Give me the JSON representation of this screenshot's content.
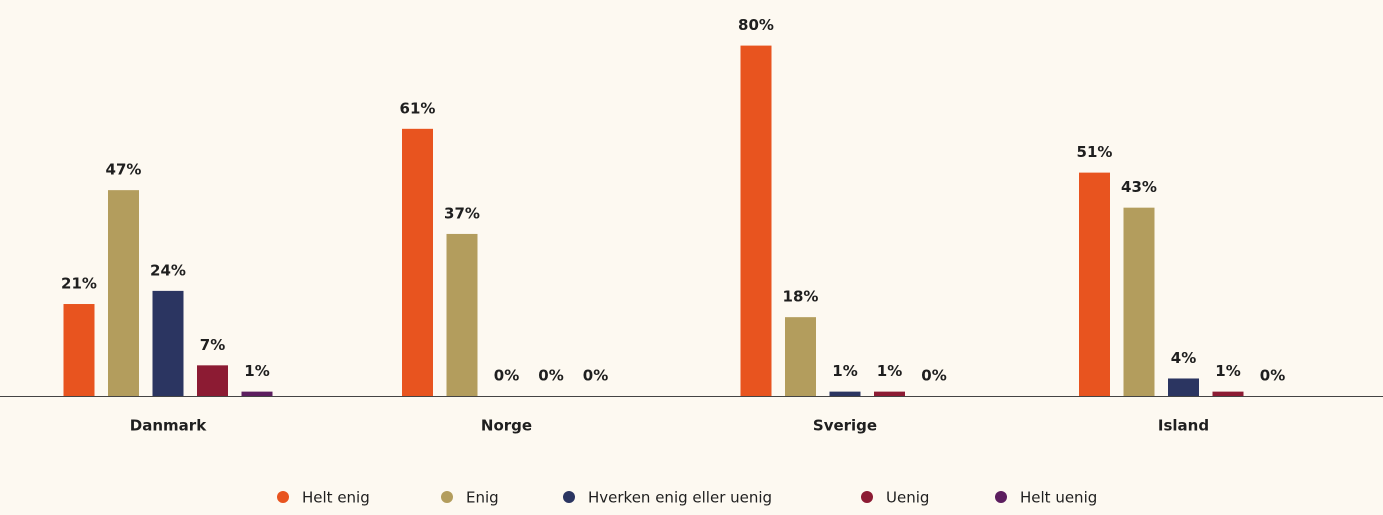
{
  "chart_data": {
    "type": "bar",
    "categories": [
      "Danmark",
      "Norge",
      "Sverige",
      "Island"
    ],
    "series": [
      {
        "name": "Helt enig",
        "color": "#e8541f",
        "values": [
          21,
          61,
          80,
          51
        ],
        "value_labels": [
          "21%",
          "61%",
          "80%",
          "51%"
        ]
      },
      {
        "name": "Enig",
        "color": "#b39d5d",
        "values": [
          47,
          37,
          18,
          43
        ],
        "value_labels": [
          "47%",
          "37%",
          "18%",
          "43%"
        ]
      },
      {
        "name": "Hverken enig eller uenig",
        "color": "#2b3561",
        "values": [
          24,
          0,
          1,
          4
        ],
        "value_labels": [
          "24%",
          "0%",
          "1%",
          "4%"
        ]
      },
      {
        "name": "Uenig",
        "color": "#8c1b33",
        "values": [
          7,
          0,
          1,
          1
        ],
        "value_labels": [
          "7%",
          "0%",
          "1%",
          "1%"
        ]
      },
      {
        "name": "Helt uenig",
        "color": "#5c1e5f",
        "values": [
          1,
          0,
          0,
          0
        ],
        "value_labels": [
          "1%",
          "0%",
          "0%",
          "0%"
        ]
      }
    ]
  }
}
